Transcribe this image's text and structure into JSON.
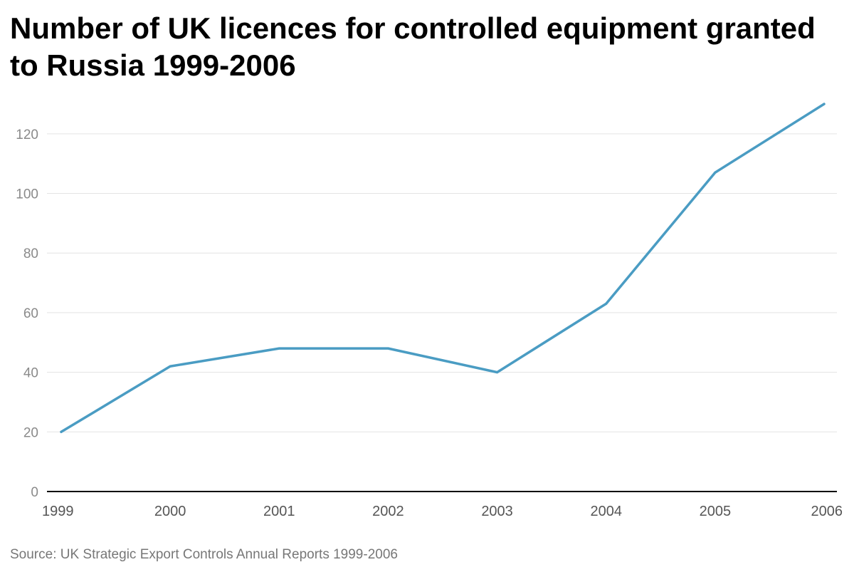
{
  "chart_data": {
    "type": "line",
    "title": "Number of UK licences for controlled equipment granted to Russia 1999-2006",
    "source": "Source: UK Strategic Export Controls Annual Reports 1999-2006",
    "xlabel": "",
    "ylabel": "",
    "categories": [
      "1999",
      "2000",
      "2001",
      "2002",
      "2003",
      "2004",
      "2005",
      "2006"
    ],
    "series": [
      {
        "name": "Licences",
        "values": [
          20,
          42,
          48,
          48,
          40,
          63,
          107,
          130
        ],
        "color": "#4a9cc3"
      }
    ],
    "ylim": [
      0,
      130
    ],
    "yticks": [
      0,
      20,
      40,
      60,
      80,
      100,
      120
    ],
    "ytick_labels": [
      "0",
      "20",
      "40",
      "60",
      "80",
      "100",
      "120"
    ],
    "grid": true,
    "colors": {
      "grid": "#e3e3e3",
      "baseline": "#000000"
    }
  }
}
